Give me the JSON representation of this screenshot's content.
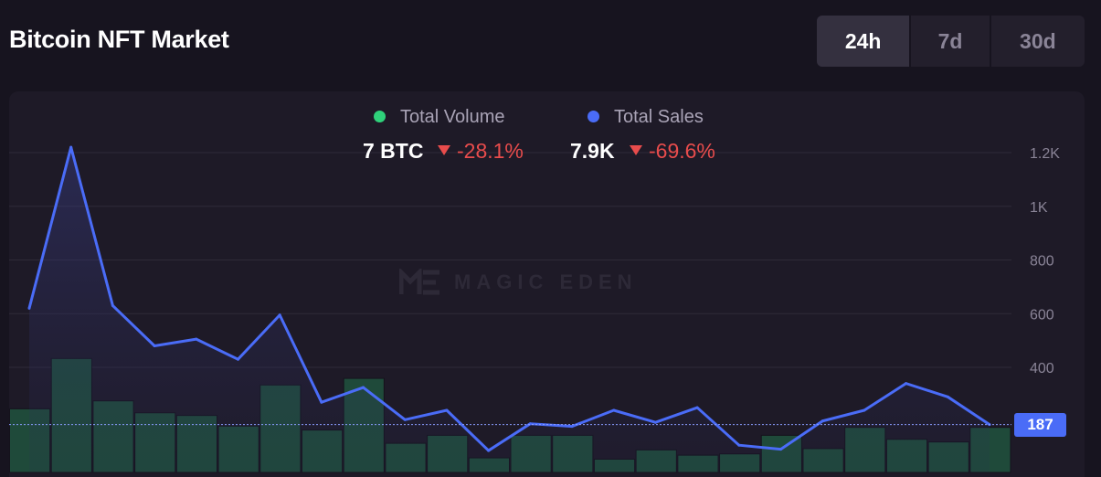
{
  "header": {
    "title": "Bitcoin NFT Market",
    "tabs": [
      {
        "label": "24h",
        "active": true
      },
      {
        "label": "7d",
        "active": false
      },
      {
        "label": "30d",
        "active": false
      }
    ]
  },
  "legend": {
    "volume": {
      "label": "Total Volume",
      "value": "7 BTC",
      "change": "-28.1%",
      "color": "#2fd17a"
    },
    "sales": {
      "label": "Total Sales",
      "value": "7.9K",
      "change": "-69.6%",
      "color": "#4a6cf7"
    }
  },
  "watermark": "MAGIC EDEN",
  "colors": {
    "negative": "#e84c4c",
    "line": "#4a6cf7",
    "bar": "#1f4a3a"
  },
  "chart_data": {
    "type": "bar",
    "y_ticks": [
      "1.2K",
      "1K",
      "800",
      "600",
      "400"
    ],
    "y_tick_values": [
      1200,
      1000,
      800,
      600,
      400
    ],
    "y_range": [
      0,
      1400
    ],
    "current_value_label": "187",
    "current_value": 187,
    "grid": true,
    "series": [
      {
        "name": "Total Sales",
        "type": "line",
        "values": [
          620,
          1220,
          630,
          480,
          505,
          430,
          595,
          270,
          325,
          205,
          240,
          90,
          190,
          180,
          240,
          195,
          250,
          110,
          95,
          200,
          240,
          340,
          290,
          187
        ]
      },
      {
        "name": "Total Volume",
        "type": "bar",
        "values": [
          0.24,
          0.43,
          0.27,
          0.225,
          0.215,
          0.175,
          0.33,
          0.16,
          0.355,
          0.11,
          0.14,
          0.055,
          0.14,
          0.14,
          0.05,
          0.085,
          0.065,
          0.07,
          0.14,
          0.09,
          0.17,
          0.125,
          0.115,
          0.17
        ]
      }
    ]
  }
}
